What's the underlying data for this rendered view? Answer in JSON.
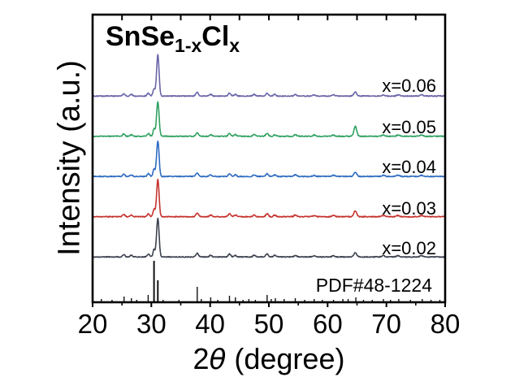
{
  "figure": {
    "title_formula": {
      "base1": "SnSe",
      "sub1": "1-x",
      "base2": "Cl",
      "sub2": "x"
    },
    "x_axis": {
      "label_prefix": "2",
      "label_theta": "θ",
      "label_suffix": " (degree)",
      "min": 20,
      "max": 80,
      "major_ticks": [
        20,
        30,
        40,
        50,
        60,
        70,
        80
      ],
      "minor_ticks": [
        25,
        35,
        45,
        55,
        65,
        75
      ]
    },
    "y_axis": {
      "label": "Intensity (a.u.)"
    },
    "frame_color": "#000000"
  },
  "chart_data": {
    "type": "line",
    "title": "SnSe1-xClx",
    "xlabel": "2θ (degree)",
    "ylabel": "Intensity (a.u.)",
    "xlim": [
      20,
      80
    ],
    "grid": false,
    "legend_position": "right-inline",
    "description": "Stacked XRD patterns of SnSe(1-x)Cl(x) for x=0.02..0.06 with SnSe reference pattern PDF#48-1224; peaks as [two_theta_deg, relative_intensity_au, peak_sigma_deg]",
    "series": [
      {
        "name": "x006",
        "label": "x=0.06",
        "color": "#6a65a8",
        "peaks": [
          [
            25.3,
            3,
            0.2
          ],
          [
            26.6,
            2,
            0.2
          ],
          [
            29.5,
            3.5,
            0.2
          ],
          [
            30.45,
            9,
            0.17
          ],
          [
            31.1,
            51,
            0.21
          ],
          [
            37.8,
            4.5,
            0.22
          ],
          [
            40.1,
            2,
            0.2
          ],
          [
            43.3,
            3.5,
            0.22
          ],
          [
            44.3,
            2,
            0.2
          ],
          [
            47.5,
            2,
            0.22
          ],
          [
            49.7,
            3.5,
            0.22
          ],
          [
            51.0,
            2,
            0.2
          ],
          [
            54.5,
            2,
            0.22
          ],
          [
            57.7,
            1.5,
            0.22
          ],
          [
            61.0,
            1.5,
            0.22
          ],
          [
            64.7,
            5,
            0.24
          ],
          [
            69.5,
            1.5,
            0.25
          ],
          [
            72.0,
            1.5,
            0.25
          ],
          [
            76.0,
            1.5,
            0.25
          ]
        ]
      },
      {
        "name": "x005",
        "label": "x=0.05",
        "color": "#2fa161",
        "peaks": [
          [
            25.3,
            3,
            0.2
          ],
          [
            26.6,
            2,
            0.2
          ],
          [
            29.5,
            3.5,
            0.2
          ],
          [
            30.45,
            9,
            0.17
          ],
          [
            31.1,
            43,
            0.21
          ],
          [
            37.8,
            4.5,
            0.22
          ],
          [
            40.1,
            2,
            0.2
          ],
          [
            43.3,
            3.5,
            0.22
          ],
          [
            44.3,
            2,
            0.2
          ],
          [
            47.5,
            2,
            0.22
          ],
          [
            49.7,
            3.5,
            0.22
          ],
          [
            51.0,
            2,
            0.2
          ],
          [
            54.5,
            2,
            0.22
          ],
          [
            57.7,
            1.5,
            0.22
          ],
          [
            61.0,
            1.5,
            0.22
          ],
          [
            64.7,
            12,
            0.24
          ],
          [
            69.5,
            1.5,
            0.25
          ],
          [
            72.0,
            1.5,
            0.25
          ],
          [
            76.0,
            1.5,
            0.25
          ]
        ]
      },
      {
        "name": "x004",
        "label": "x=0.04",
        "color": "#2e6bc0",
        "peaks": [
          [
            25.3,
            3,
            0.2
          ],
          [
            26.6,
            2,
            0.2
          ],
          [
            29.5,
            3.5,
            0.2
          ],
          [
            30.45,
            9,
            0.17
          ],
          [
            31.1,
            44,
            0.21
          ],
          [
            37.8,
            4.5,
            0.22
          ],
          [
            40.1,
            2,
            0.2
          ],
          [
            43.3,
            3.5,
            0.22
          ],
          [
            44.3,
            2,
            0.2
          ],
          [
            47.5,
            2,
            0.22
          ],
          [
            49.7,
            3.5,
            0.22
          ],
          [
            51.0,
            2,
            0.2
          ],
          [
            54.5,
            2,
            0.22
          ],
          [
            57.7,
            1.5,
            0.22
          ],
          [
            61.0,
            1.5,
            0.22
          ],
          [
            64.7,
            5.5,
            0.24
          ],
          [
            69.5,
            1.5,
            0.25
          ],
          [
            72.0,
            1.5,
            0.25
          ],
          [
            76.0,
            1.5,
            0.25
          ]
        ]
      },
      {
        "name": "x003",
        "label": "x=0.03",
        "color": "#c5342f",
        "peaks": [
          [
            25.3,
            3,
            0.2
          ],
          [
            26.6,
            2,
            0.2
          ],
          [
            29.5,
            3.5,
            0.2
          ],
          [
            30.45,
            9,
            0.17
          ],
          [
            31.1,
            46,
            0.21
          ],
          [
            37.8,
            4.5,
            0.22
          ],
          [
            40.1,
            2,
            0.2
          ],
          [
            43.3,
            3.5,
            0.22
          ],
          [
            44.3,
            2,
            0.2
          ],
          [
            47.5,
            2,
            0.22
          ],
          [
            49.7,
            3.5,
            0.22
          ],
          [
            51.0,
            2,
            0.2
          ],
          [
            54.5,
            2,
            0.22
          ],
          [
            57.7,
            1.5,
            0.22
          ],
          [
            61.0,
            1.5,
            0.22
          ],
          [
            64.7,
            7,
            0.24
          ],
          [
            69.5,
            1.5,
            0.25
          ],
          [
            72.0,
            1.5,
            0.25
          ],
          [
            76.0,
            1.5,
            0.25
          ]
        ]
      },
      {
        "name": "x002",
        "label": "x=0.02",
        "color": "#3d4250",
        "peaks": [
          [
            25.3,
            3,
            0.2
          ],
          [
            26.6,
            2,
            0.2
          ],
          [
            29.5,
            3.5,
            0.2
          ],
          [
            30.45,
            9,
            0.17
          ],
          [
            31.1,
            48,
            0.21
          ],
          [
            37.8,
            4.5,
            0.22
          ],
          [
            40.1,
            2,
            0.2
          ],
          [
            43.3,
            3.5,
            0.22
          ],
          [
            44.3,
            2,
            0.2
          ],
          [
            47.5,
            2,
            0.22
          ],
          [
            49.7,
            3.5,
            0.22
          ],
          [
            51.0,
            2,
            0.2
          ],
          [
            54.5,
            2,
            0.22
          ],
          [
            57.7,
            1.5,
            0.22
          ],
          [
            61.0,
            1.5,
            0.22
          ],
          [
            64.7,
            5.5,
            0.24
          ],
          [
            69.5,
            1.5,
            0.25
          ],
          [
            72.0,
            1.5,
            0.25
          ],
          [
            76.0,
            1.5,
            0.25
          ]
        ]
      }
    ],
    "reference": {
      "label": "PDF#48-1224",
      "color": "#111111",
      "sticks": [
        [
          21.5,
          3
        ],
        [
          23.3,
          2
        ],
        [
          25.35,
          6
        ],
        [
          26.6,
          4
        ],
        [
          27.5,
          2
        ],
        [
          29.45,
          8
        ],
        [
          30.45,
          50
        ],
        [
          31.1,
          26
        ],
        [
          32.0,
          2
        ],
        [
          34.7,
          2
        ],
        [
          37.8,
          18
        ],
        [
          38.5,
          3
        ],
        [
          40.1,
          5
        ],
        [
          41.3,
          2
        ],
        [
          43.3,
          7
        ],
        [
          44.3,
          5
        ],
        [
          45.6,
          2
        ],
        [
          46.6,
          3
        ],
        [
          47.7,
          2
        ],
        [
          49.7,
          8
        ],
        [
          50.4,
          3
        ],
        [
          51.1,
          4
        ],
        [
          52.6,
          3
        ],
        [
          54.5,
          4
        ],
        [
          56.1,
          2
        ],
        [
          57.7,
          3
        ],
        [
          59.1,
          2
        ],
        [
          61.0,
          2
        ],
        [
          62.6,
          3
        ],
        [
          63.5,
          3
        ],
        [
          64.8,
          5
        ],
        [
          66.1,
          2
        ],
        [
          67.6,
          2
        ],
        [
          69.5,
          3
        ],
        [
          70.7,
          2
        ],
        [
          72.1,
          3
        ],
        [
          74.1,
          2
        ],
        [
          76.1,
          3
        ],
        [
          77.6,
          2
        ],
        [
          79.1,
          2
        ]
      ]
    }
  }
}
